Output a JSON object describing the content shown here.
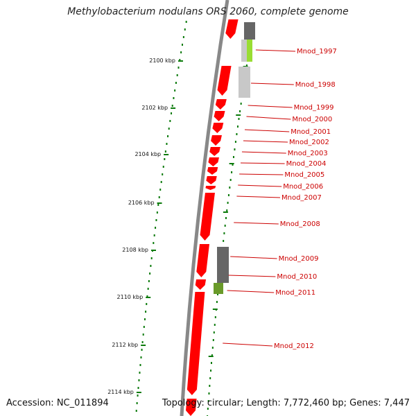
{
  "title": "Methylobacterium nodulans ORS 2060, complete genome",
  "accession": "Accession: NC_011894",
  "topology": "Topology: circular; Length: 7,772,460 bp; Genes: 7,447",
  "colors": {
    "backbone": "#888888",
    "gene": "#ff0000",
    "dots": "#0a7a0a",
    "label": "#cc0000",
    "gray_dark": "#666666",
    "gray_light": "#c8c8c8",
    "green": "#99dd33"
  },
  "ticks": [
    {
      "label": "2100 kbp",
      "kbp": 2100
    },
    {
      "label": "2102 kbp",
      "kbp": 2102
    },
    {
      "label": "2104 kbp",
      "kbp": 2104
    },
    {
      "label": "2106 kbp",
      "kbp": 2106
    },
    {
      "label": "2108 kbp",
      "kbp": 2108
    },
    {
      "label": "2110 kbp",
      "kbp": 2110
    },
    {
      "label": "2112 kbp",
      "kbp": 2112
    },
    {
      "label": "2114 kbp",
      "kbp": 2114
    }
  ],
  "genes": [
    {
      "name": "Mnod_1997"
    },
    {
      "name": "Mnod_1998"
    },
    {
      "name": "Mnod_1999"
    },
    {
      "name": "Mnod_2000"
    },
    {
      "name": "Mnod_2001"
    },
    {
      "name": "Mnod_2002"
    },
    {
      "name": "Mnod_2003"
    },
    {
      "name": "Mnod_2004"
    },
    {
      "name": "Mnod_2005"
    },
    {
      "name": "Mnod_2006"
    },
    {
      "name": "Mnod_2007"
    },
    {
      "name": "Mnod_2008"
    },
    {
      "name": "Mnod_2009"
    },
    {
      "name": "Mnod_2010"
    },
    {
      "name": "Mnod_2011"
    },
    {
      "name": "Mnod_2012"
    }
  ]
}
